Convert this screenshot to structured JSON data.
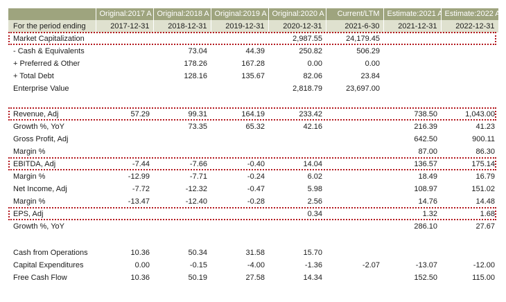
{
  "columns": [
    {
      "header": "Original:2017 A",
      "period": "2017-12-31"
    },
    {
      "header": "Original:2018 A",
      "period": "2018-12-31"
    },
    {
      "header": "Original:2019 A",
      "period": "2019-12-31"
    },
    {
      "header": "Original:2020 A",
      "period": "2020-12-31"
    },
    {
      "header": "Current/LTM",
      "period": "2021-6-30"
    },
    {
      "header": "Estimate:2021 A",
      "period": "2021-12-31"
    },
    {
      "header": "Estimate:2022 A",
      "period": "2022-12-31"
    }
  ],
  "period_label": "For the period ending",
  "highlight_color": "#b3161c",
  "header_color": "#9ea47e",
  "subheader_color": "#dfe1cf",
  "rows": [
    {
      "label": "Market Capitalization",
      "values": [
        "",
        "",
        "",
        "2,987.55",
        "24,179.45",
        "",
        ""
      ],
      "highlight": true
    },
    {
      "label": " - Cash & Equivalents",
      "values": [
        "",
        "73.04",
        "44.39",
        "250.82",
        "506.29",
        "",
        ""
      ]
    },
    {
      "label": " + Preferred & Other",
      "values": [
        "",
        "178.26",
        "167.28",
        "0.00",
        "0.00",
        "",
        ""
      ]
    },
    {
      "label": " + Total Debt",
      "values": [
        "",
        "128.16",
        "135.67",
        "82.06",
        "23.84",
        "",
        ""
      ]
    },
    {
      "label": "Enterprise Value",
      "values": [
        "",
        "",
        "",
        "2,818.79",
        "23,697.00",
        "",
        ""
      ]
    },
    {
      "spacer": true
    },
    {
      "label": "Revenue, Adj",
      "values": [
        "57.29",
        "99.31",
        "164.19",
        "233.42",
        "",
        "738.50",
        "1,043.00"
      ],
      "highlight": true
    },
    {
      "label": "  Growth %, YoY",
      "values": [
        "",
        "73.35",
        "65.32",
        "42.16",
        "",
        "216.39",
        "41.23"
      ]
    },
    {
      "label": "Gross Profit, Adj",
      "values": [
        "",
        "",
        "",
        "",
        "",
        "642.50",
        "900.11"
      ]
    },
    {
      "label": "  Margin %",
      "values": [
        "",
        "",
        "",
        "",
        "",
        "87.00",
        "86.30"
      ]
    },
    {
      "label": "EBITDA, Adj",
      "values": [
        "-7.44",
        "-7.66",
        "-0.40",
        "14.04",
        "",
        "136.57",
        "175.14"
      ],
      "highlight": true
    },
    {
      "label": "  Margin %",
      "values": [
        "-12.99",
        "-7.71",
        "-0.24",
        "6.02",
        "",
        "18.49",
        "16.79"
      ]
    },
    {
      "label": "Net Income, Adj",
      "values": [
        "-7.72",
        "-12.32",
        "-0.47",
        "5.98",
        "",
        "108.97",
        "151.02"
      ]
    },
    {
      "label": "  Margin %",
      "values": [
        "-13.47",
        "-12.40",
        "-0.28",
        "2.56",
        "",
        "14.76",
        "14.48"
      ]
    },
    {
      "label": "EPS, Adj",
      "values": [
        "",
        "",
        "",
        "0.34",
        "",
        "1.32",
        "1.68"
      ],
      "highlight": true
    },
    {
      "label": "  Growth %, YoY",
      "values": [
        "",
        "",
        "",
        "",
        "",
        "286.10",
        "27.67"
      ]
    },
    {
      "spacer": true,
      "double": true
    },
    {
      "label": "Cash from Operations",
      "values": [
        "10.36",
        "50.34",
        "31.58",
        "15.70",
        "",
        "",
        ""
      ]
    },
    {
      "label": "Capital Expenditures",
      "values": [
        "0.00",
        "-0.15",
        "-4.00",
        "-1.36",
        "-2.07",
        "-13.07",
        "-12.00"
      ]
    },
    {
      "label": "Free Cash Flow",
      "values": [
        "10.36",
        "50.19",
        "27.58",
        "14.34",
        "",
        "152.50",
        "115.00"
      ]
    }
  ]
}
